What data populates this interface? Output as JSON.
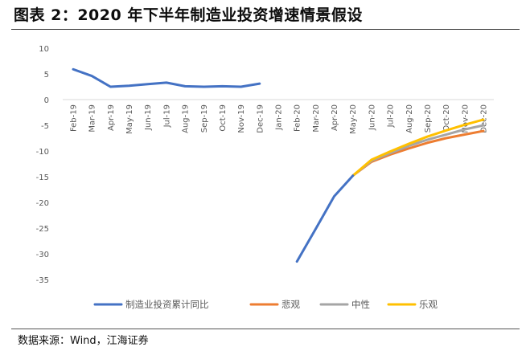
{
  "header": {
    "title": "图表 2：2020 年下半年制造业投资增速情景假设"
  },
  "footer": {
    "source": "数据来源：Wind，江海证券"
  },
  "colors": {
    "actual": "#4472C4",
    "pessimistic": "#ED7D31",
    "neutral": "#A5A5A5",
    "optimistic": "#FFC000",
    "axis_text": "#595959",
    "zero_line": "#D9D9D9"
  },
  "chart_data": {
    "type": "line",
    "categories": [
      "Feb-19",
      "Mar-19",
      "Apr-19",
      "May-19",
      "Jun-19",
      "Jul-19",
      "Aug-19",
      "Sep-19",
      "Oct-19",
      "Nov-19",
      "Dec-19",
      "Jan-20",
      "Feb-20",
      "Mar-20",
      "Apr-20",
      "May-20",
      "Jun-20",
      "Jul-20",
      "Aug-20",
      "Sep-20",
      "Oct-20",
      "Nov-20",
      "Dec-20"
    ],
    "ylim": [
      -35,
      10
    ],
    "yticks": [
      10,
      5,
      0,
      -5,
      -10,
      -15,
      -20,
      -25,
      -30,
      -35
    ],
    "grid": false,
    "legend_position": "bottom",
    "series": [
      {
        "name": "制造业投资累计同比",
        "color_key": "actual",
        "values": [
          5.9,
          4.6,
          2.5,
          2.7,
          3.0,
          3.3,
          2.6,
          2.5,
          2.6,
          2.5,
          3.1,
          null,
          -31.5,
          -25.2,
          -18.8,
          -14.8,
          null,
          null,
          null,
          null,
          null,
          null,
          null
        ]
      },
      {
        "name": "悲观",
        "color_key": "pessimistic",
        "values": [
          null,
          null,
          null,
          null,
          null,
          null,
          null,
          null,
          null,
          null,
          null,
          null,
          null,
          null,
          null,
          -14.8,
          -12.1,
          -10.7,
          -9.5,
          -8.4,
          -7.5,
          -6.8,
          -6.1
        ]
      },
      {
        "name": "中性",
        "color_key": "neutral",
        "values": [
          null,
          null,
          null,
          null,
          null,
          null,
          null,
          null,
          null,
          null,
          null,
          null,
          null,
          null,
          null,
          -14.8,
          -11.9,
          -10.4,
          -9.0,
          -7.8,
          -6.8,
          -5.8,
          -5.0
        ]
      },
      {
        "name": "乐观",
        "color_key": "optimistic",
        "values": [
          null,
          null,
          null,
          null,
          null,
          null,
          null,
          null,
          null,
          null,
          null,
          null,
          null,
          null,
          null,
          -14.8,
          -11.7,
          -10.1,
          -8.6,
          -7.2,
          -6.0,
          -4.9,
          -3.9
        ]
      }
    ]
  }
}
